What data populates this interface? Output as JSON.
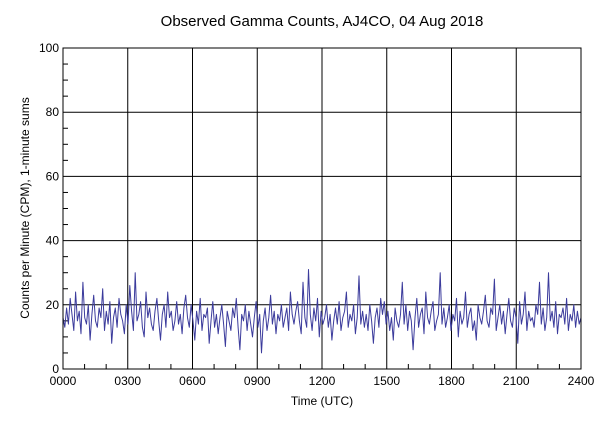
{
  "chart_data": {
    "type": "line",
    "title": "Observed Gamma Counts, AJ4CO, 04 Aug 2018",
    "xlabel": "Time (UTC)",
    "ylabel": "Counts per Minute (CPM), 1-minute sums",
    "xlim": [
      0,
      24
    ],
    "ylim": [
      0,
      100
    ],
    "x_ticks": [
      0,
      3,
      6,
      9,
      12,
      15,
      18,
      21,
      24
    ],
    "x_tick_labels": [
      "0000",
      "0300",
      "0600",
      "0900",
      "1200",
      "1500",
      "1800",
      "2100",
      "2400"
    ],
    "y_ticks": [
      0,
      20,
      40,
      60,
      80,
      100
    ],
    "y_tick_labels": [
      "0",
      "20",
      "40",
      "60",
      "80",
      "100"
    ],
    "grid": true,
    "line_color": "#3b3b9c",
    "series": [
      {
        "name": "CPM",
        "x_step_minutes": 5,
        "values": [
          16,
          13,
          19,
          14,
          22,
          17,
          12,
          24,
          15,
          18,
          11,
          27,
          16,
          14,
          20,
          9,
          17,
          23,
          15,
          13,
          19,
          16,
          25,
          12,
          18,
          14,
          21,
          8,
          16,
          19,
          13,
          22,
          17,
          15,
          11,
          20,
          14,
          26,
          18,
          12,
          30,
          15,
          17,
          21,
          13,
          10,
          24,
          16,
          19,
          14,
          12,
          18,
          22,
          15,
          9,
          17,
          20,
          13,
          24,
          16,
          18,
          12,
          15,
          21,
          14,
          17,
          11,
          19,
          23,
          16,
          13,
          20,
          15,
          9,
          18,
          14,
          22,
          12,
          17,
          16,
          19,
          8,
          15,
          21,
          13,
          17,
          11,
          16,
          20,
          14,
          7,
          18,
          15,
          12,
          19,
          16,
          22,
          13,
          6,
          17,
          15,
          20,
          12,
          18,
          14,
          10,
          16,
          21,
          13,
          17,
          5,
          15,
          19,
          12,
          16,
          23,
          14,
          18,
          11,
          17,
          15,
          20,
          13,
          16,
          19,
          12,
          24,
          17,
          14,
          18,
          21,
          15,
          11,
          27,
          16,
          13,
          31,
          17,
          12,
          19,
          15,
          22,
          10,
          18,
          14,
          16,
          20,
          13,
          17,
          9,
          15,
          19,
          14,
          21,
          12,
          16,
          18,
          24,
          13,
          17,
          15,
          20,
          11,
          16,
          29,
          14,
          18,
          13,
          17,
          12,
          20,
          15,
          8,
          16,
          19,
          13,
          22,
          17,
          21,
          14,
          18,
          12,
          16,
          9,
          19,
          15,
          13,
          17,
          27,
          14,
          20,
          12,
          18,
          15,
          6,
          16,
          22,
          13,
          17,
          19,
          11,
          24,
          16,
          14,
          18,
          21,
          12,
          15,
          17,
          30,
          14,
          19,
          13,
          16,
          20,
          12,
          17,
          15,
          22,
          10,
          18,
          14,
          16,
          24,
          13,
          17,
          19,
          12,
          15,
          9,
          20,
          16,
          14,
          18,
          23,
          15,
          13,
          19,
          17,
          28,
          12,
          16,
          20,
          14,
          18,
          11,
          17,
          22,
          15,
          13,
          19,
          16,
          8,
          21,
          14,
          17,
          24,
          12,
          18,
          15,
          16,
          13,
          20,
          17,
          27,
          14,
          19,
          12,
          16,
          30,
          15,
          18,
          13,
          21,
          11,
          17,
          16,
          19,
          14,
          22,
          12,
          17,
          15,
          20,
          13,
          18,
          14,
          16
        ]
      }
    ]
  }
}
